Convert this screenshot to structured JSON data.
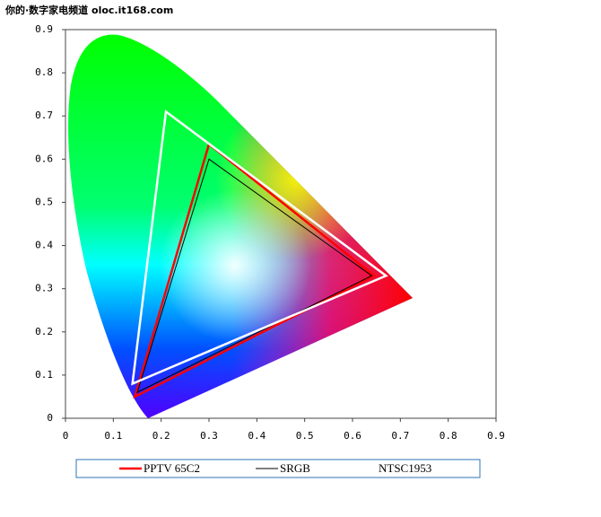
{
  "chart_data": {
    "type": "polygon",
    "watermark": "你的·数字家电频道 oloc.it168.com",
    "xlim": [
      0,
      0.9
    ],
    "ylim": [
      0,
      0.9
    ],
    "xticks": [
      0,
      0.1,
      0.2,
      0.3,
      0.4,
      0.5,
      0.6,
      0.7,
      0.8,
      0.9
    ],
    "yticks": [
      0,
      0.1,
      0.2,
      0.3,
      0.4,
      0.5,
      0.6,
      0.7,
      0.8,
      0.9
    ],
    "series": [
      {
        "name": "PPTV 65C2",
        "color": "#ff0000",
        "x": [
          0.3,
          0.645,
          0.145
        ],
        "values": [
          0.635,
          0.33,
          0.05
        ]
      },
      {
        "name": "SRGB",
        "color": "#000000",
        "x": [
          0.3,
          0.64,
          0.15
        ],
        "values": [
          0.6,
          0.33,
          0.06
        ]
      },
      {
        "name": "NTSC1953",
        "color": "#ffffff",
        "x": [
          0.21,
          0.67,
          0.14
        ],
        "values": [
          0.71,
          0.33,
          0.08
        ]
      }
    ]
  }
}
